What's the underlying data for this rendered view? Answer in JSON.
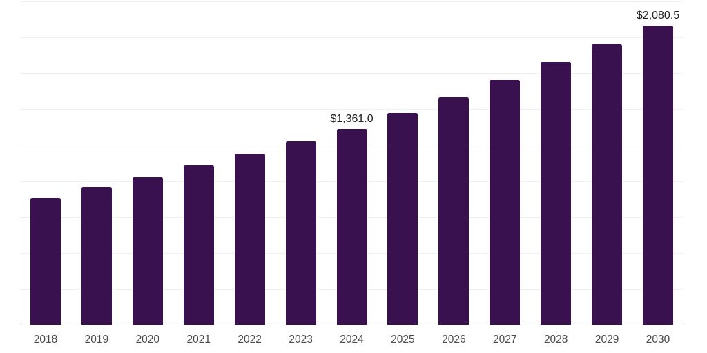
{
  "chart_data": {
    "type": "bar",
    "title": "",
    "xlabel": "",
    "ylabel": "",
    "categories": [
      "2018",
      "2019",
      "2020",
      "2021",
      "2022",
      "2023",
      "2024",
      "2025",
      "2026",
      "2027",
      "2028",
      "2029",
      "2030"
    ],
    "values": [
      885,
      958,
      1028,
      1107,
      1188,
      1278,
      1361.0,
      1475,
      1582,
      1705,
      1828,
      1952,
      2080.5
    ],
    "data_labels": [
      null,
      null,
      null,
      null,
      null,
      null,
      "$1,361.0",
      null,
      null,
      null,
      null,
      null,
      "$2,080.5"
    ],
    "ylim": [
      0,
      2250
    ],
    "gridline_step": 250,
    "gridlines_above_axis": 9,
    "grid_on": true,
    "legend": "none",
    "colors": {
      "bar": "#39114f",
      "gridline": "#f1f1f1",
      "axis_line": "#3d3d3d",
      "tick_label": "#4a4a4a",
      "data_label": "#212121",
      "background": "#ffffff"
    }
  }
}
